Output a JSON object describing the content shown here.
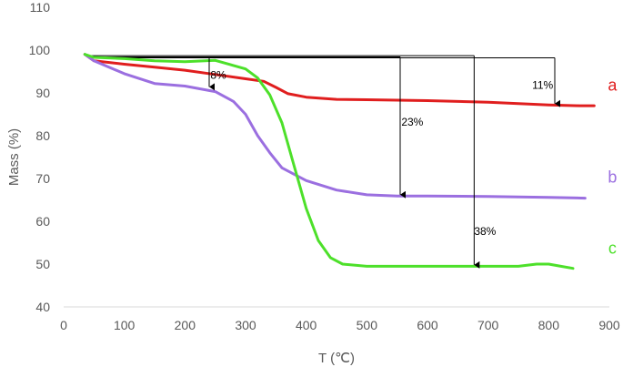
{
  "chart_data": {
    "type": "line",
    "xlabel": "T (℃)",
    "ylabel": "Mass (%)",
    "xlim": [
      0,
      900
    ],
    "ylim": [
      40,
      110
    ],
    "x_ticks": [
      0,
      100,
      200,
      300,
      400,
      500,
      600,
      700,
      800,
      900
    ],
    "y_ticks": [
      40,
      50,
      60,
      70,
      80,
      90,
      100,
      110
    ],
    "grid": false,
    "legend": "none",
    "series": [
      {
        "name": "a",
        "color": "#e01e1e",
        "x": [
          35,
          50,
          100,
          150,
          200,
          250,
          300,
          330,
          350,
          370,
          400,
          450,
          500,
          600,
          700,
          800,
          850,
          875
        ],
        "y": [
          99,
          97.5,
          96.7,
          96,
          95.3,
          94.3,
          93.3,
          92.7,
          91.3,
          89.8,
          89,
          88.5,
          88.4,
          88.2,
          87.8,
          87.2,
          87,
          87
        ]
      },
      {
        "name": "b",
        "color": "#9b6fe0",
        "x": [
          35,
          50,
          100,
          150,
          200,
          250,
          280,
          300,
          320,
          340,
          360,
          380,
          400,
          450,
          500,
          550,
          600,
          700,
          800,
          860
        ],
        "y": [
          99,
          97.5,
          94.5,
          92.2,
          91.6,
          90.3,
          88,
          85,
          80,
          76,
          72.5,
          71,
          69.5,
          67.3,
          66.2,
          65.9,
          65.9,
          65.8,
          65.6,
          65.4
        ]
      },
      {
        "name": "c",
        "color": "#4de02a",
        "x": [
          35,
          50,
          100,
          150,
          200,
          250,
          300,
          320,
          340,
          360,
          380,
          400,
          420,
          440,
          460,
          500,
          600,
          700,
          750,
          780,
          800,
          820,
          840
        ],
        "y": [
          99,
          98.3,
          98,
          97.5,
          97.3,
          97.6,
          95.6,
          93.5,
          89.5,
          83,
          73,
          63,
          55.5,
          51.5,
          50,
          49.5,
          49.5,
          49.5,
          49.5,
          50,
          50,
          49.5,
          49
        ]
      }
    ],
    "annotations": [
      {
        "text": "8%",
        "x": 255,
        "y": 94.2,
        "arrow_x": 240,
        "from_y": 98.3,
        "to_y": 91.2
      },
      {
        "text": "11%",
        "x": 790,
        "y": 91.8,
        "arrow_x": 810,
        "from_y": 98.2,
        "to_y": 87.3
      },
      {
        "text": "23%",
        "x": 575,
        "y": 83.2,
        "arrow_x": 555,
        "from_y": 98.4,
        "to_y": 66
      },
      {
        "text": "38%",
        "x": 695,
        "y": 57.7,
        "arrow_x": 677,
        "from_y": 98.7,
        "to_y": 49.6
      }
    ],
    "connector_ys": [
      98.7,
      98.4,
      98.2
    ],
    "connector_start_x": 40,
    "series_labels": [
      {
        "text": "a",
        "x": 905,
        "y": 90.5,
        "color": "#e01e1e"
      },
      {
        "text": "b",
        "x": 905,
        "y": 69,
        "color": "#9b6fe0"
      },
      {
        "text": "c",
        "x": 905,
        "y": 52.5,
        "color": "#4de02a"
      }
    ]
  }
}
